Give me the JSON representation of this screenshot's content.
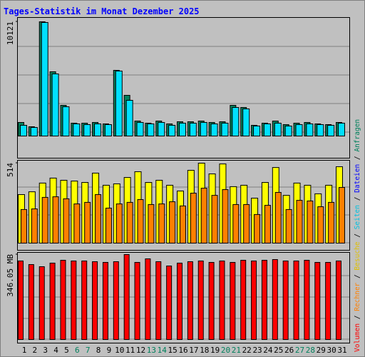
{
  "chart_data": {
    "type": "bar",
    "title": "Tages-Statistik im Monat Dezember 2025",
    "categories": [
      "1",
      "2",
      "3",
      "4",
      "5",
      "6",
      "7",
      "8",
      "9",
      "10",
      "11",
      "12",
      "13",
      "14",
      "15",
      "16",
      "17",
      "18",
      "19",
      "20",
      "21",
      "22",
      "23",
      "24",
      "25",
      "26",
      "27",
      "28",
      "29",
      "30",
      "31"
    ],
    "category_colors": [
      "#000000",
      "#000000",
      "#000000",
      "#000000",
      "#000000",
      "#00805c",
      "#00805c",
      "#000000",
      "#000000",
      "#000000",
      "#000000",
      "#000000",
      "#00805c",
      "#00805c",
      "#000000",
      "#000000",
      "#000000",
      "#000000",
      "#000000",
      "#00805c",
      "#00805c",
      "#000000",
      "#000000",
      "#000000",
      "#000000",
      "#000000",
      "#00805c",
      "#00805c",
      "#000000",
      "#000000",
      "#000000"
    ],
    "legend": [
      {
        "name": "Volumen",
        "color": "#ff0000"
      },
      {
        "name": "Rechner",
        "color": "#ff8000"
      },
      {
        "name": "Besuche",
        "color": "#e0c000"
      },
      {
        "name": "Seiten",
        "color": "#00c0e0"
      },
      {
        "name": "Dateien",
        "color": "#0000ff"
      },
      {
        "name": "Anfragen",
        "color": "#00805c"
      }
    ],
    "legend_separator": " / ",
    "panels": [
      {
        "ylim": [
          0,
          10121
        ],
        "yticks": [
          10121
        ],
        "series": [
          {
            "color": "#00805c",
            "values": [
              1202,
              822,
              10121,
              5693,
              2720,
              1139,
              1139,
              1202,
              1075,
              5820,
              3606,
              1328,
              1139,
              1328,
              1075,
              1265,
              1265,
              1328,
              1202,
              1265,
              2720,
              2530,
              949,
              1139,
              1328,
              1012,
              1139,
              1202,
              1075,
              1012,
              1202
            ]
          },
          {
            "color": "#00e0ff",
            "values": [
              949,
              759,
              10058,
              5503,
              2593,
              1075,
              1012,
              1075,
              1012,
              5756,
              3163,
              1202,
              1075,
              1202,
              949,
              1139,
              1139,
              1202,
              1075,
              1139,
              2530,
              2404,
              886,
              1075,
              1139,
              886,
              1012,
              1075,
              1012,
              949,
              1139
            ]
          }
        ]
      },
      {
        "ylim": [
          0,
          514
        ],
        "yticks": [
          514
        ],
        "series": [
          {
            "color": "#ffff00",
            "values": [
              312,
              330,
              386,
              418,
              404,
              399,
              390,
              450,
              372,
              381,
              422,
              459,
              390,
              404,
              372,
              335,
              468,
              514,
              445,
              509,
              363,
              372,
              289,
              390,
              486,
              307,
              386,
              372,
              317,
              372,
              491
            ]
          },
          {
            "color": "#ff8000",
            "values": [
              216,
              220,
              294,
              298,
              285,
              252,
              262,
              312,
              225,
              252,
              262,
              280,
              248,
              252,
              266,
              239,
              321,
              353,
              307,
              344,
              248,
              248,
              184,
              243,
              326,
              216,
              275,
              271,
              234,
              262,
              358
            ]
          }
        ]
      },
      {
        "ylim": [
          0,
          346.05
        ],
        "yticks": [
          {
            "value": 346.05,
            "label": "346.05 MB"
          }
        ],
        "series": [
          {
            "color": "#ff0000",
            "values": [
              319.9,
              305.3,
              296.6,
              311.2,
              322.8,
              319.9,
              319.9,
              317.0,
              314.1,
              317.0,
              346.05,
              314.1,
              328.6,
              317.0,
              299.5,
              311.2,
              317.0,
              319.9,
              314.1,
              319.9,
              314.1,
              322.8,
              319.9,
              322.8,
              325.7,
              319.9,
              319.9,
              322.8,
              314.1,
              314.1,
              319.9
            ]
          }
        ]
      }
    ]
  }
}
